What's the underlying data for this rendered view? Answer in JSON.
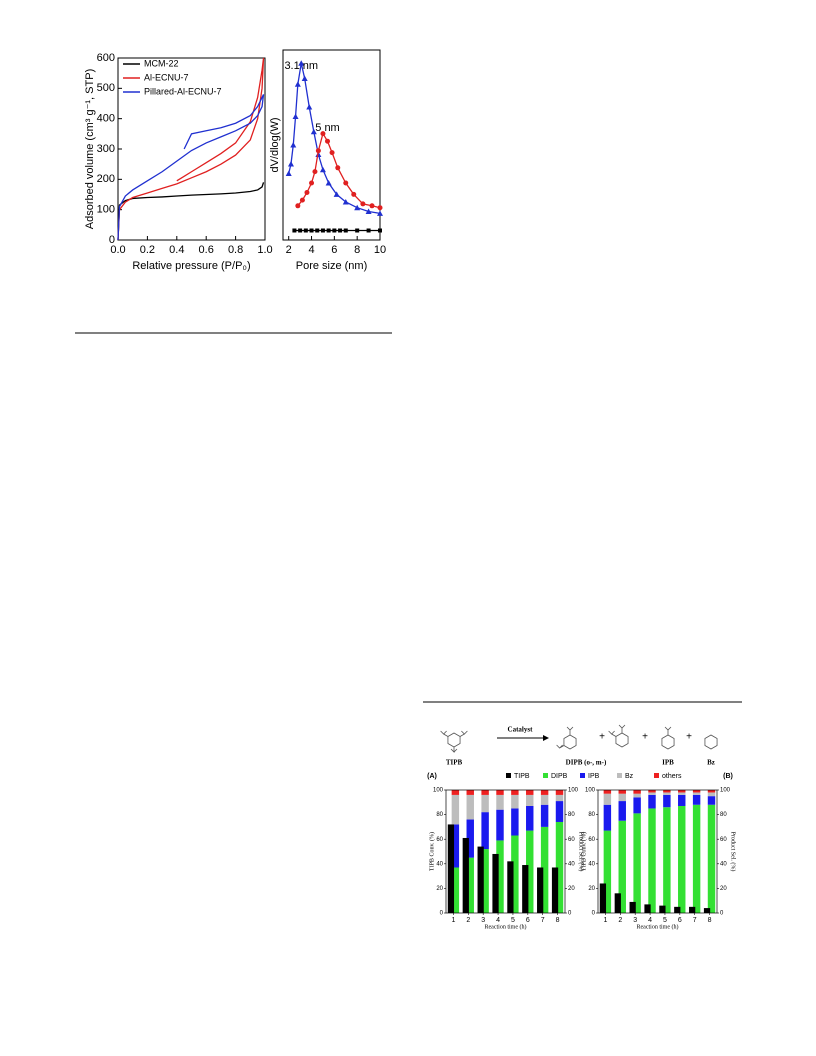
{
  "chart_data": [
    {
      "type": "line",
      "xlabel": "Relative pressure (P/P₀)",
      "ylabel": "Adsorbed volume (cm³ g⁻¹, STP)",
      "xlim": [
        0,
        1
      ],
      "xticks": [
        {
          "value": 0,
          "label": "0.0"
        },
        0.2,
        0.4,
        0.6,
        0.8,
        {
          "value": 1,
          "label": "1.0"
        }
      ],
      "ylim": [
        0,
        600
      ],
      "yticks": [
        0,
        100,
        200,
        300,
        400,
        500,
        600
      ],
      "legend": "top-left",
      "series": [
        {
          "name": "MCM-22",
          "color": "#000000",
          "x": [
            0,
            0.01,
            0.05,
            0.1,
            0.2,
            0.3,
            0.4,
            0.5,
            0.6,
            0.7,
            0.8,
            0.9,
            0.95,
            0.98,
            0.99
          ],
          "values": [
            0,
            115,
            130,
            137,
            140,
            142,
            145,
            148,
            150,
            152,
            155,
            160,
            165,
            175,
            190
          ]
        },
        {
          "name": "Al-ECNU-7",
          "color": "#e02020",
          "x": [
            0,
            0.01,
            0.05,
            0.1,
            0.2,
            0.3,
            0.4,
            0.5,
            0.6,
            0.7,
            0.8,
            0.9,
            0.95,
            0.98,
            0.99,
            0.98,
            0.95,
            0.9,
            0.8,
            0.7,
            0.6,
            0.5,
            0.45,
            0.4
          ],
          "values": [
            0,
            100,
            125,
            140,
            155,
            170,
            185,
            205,
            225,
            250,
            280,
            330,
            400,
            500,
            600,
            560,
            470,
            390,
            320,
            285,
            255,
            225,
            210,
            195
          ]
        },
        {
          "name": "Pillared-Al-ECNU-7",
          "color": "#2030d0",
          "x": [
            0,
            0.01,
            0.05,
            0.1,
            0.2,
            0.3,
            0.4,
            0.5,
            0.6,
            0.7,
            0.8,
            0.9,
            0.95,
            0.98,
            0.99,
            0.98,
            0.95,
            0.9,
            0.8,
            0.7,
            0.6,
            0.5,
            0.45
          ],
          "values": [
            0,
            110,
            145,
            165,
            195,
            225,
            260,
            295,
            320,
            340,
            360,
            385,
            410,
            440,
            480,
            470,
            440,
            410,
            385,
            370,
            360,
            350,
            300
          ]
        }
      ]
    },
    {
      "type": "line",
      "xlabel": "Pore size (nm)",
      "ylabel": "dV/dlog(W)",
      "xlim": [
        1.5,
        10
      ],
      "xticks": [
        2,
        4,
        6,
        8,
        10
      ],
      "ylim": [
        0,
        100
      ],
      "annotations": [
        "3.1 nm",
        "5 nm"
      ],
      "series": [
        {
          "color": "#2030d0",
          "marker": "triangle",
          "x": [
            2,
            2.2,
            2.4,
            2.6,
            2.8,
            3.1,
            3.4,
            3.8,
            4.2,
            4.6,
            5,
            5.5,
            6.2,
            7,
            8,
            9,
            10
          ],
          "values": [
            35,
            40,
            50,
            65,
            82,
            93,
            85,
            70,
            57,
            45,
            37,
            30,
            24,
            20,
            17,
            15,
            14
          ]
        },
        {
          "color": "#e02020",
          "marker": "circle",
          "x": [
            2.8,
            3.2,
            3.6,
            4,
            4.3,
            4.6,
            5,
            5.4,
            5.8,
            6.3,
            7,
            7.7,
            8.5,
            9.3,
            10
          ],
          "values": [
            18,
            21,
            25,
            30,
            36,
            47,
            56,
            52,
            46,
            38,
            30,
            24,
            19,
            18,
            17
          ]
        },
        {
          "color": "#000000",
          "marker": "square",
          "x": [
            2.5,
            3,
            3.5,
            4,
            4.5,
            5,
            5.5,
            6,
            6.5,
            7,
            8,
            9,
            10
          ],
          "values": [
            5,
            5,
            5,
            5,
            5,
            5,
            5,
            5,
            5,
            5,
            5,
            5,
            5
          ]
        }
      ]
    },
    {
      "type": "bar",
      "xlabel": "Reaction time (h)",
      "ylabel": "TIPB Conv. (%)",
      "y2label": "Product Sel. (%)",
      "ylim": [
        0,
        100
      ],
      "yticks": [
        0,
        20,
        40,
        60,
        80,
        100
      ],
      "y2lim": [
        0,
        100
      ],
      "y2ticks": [
        0,
        20,
        40,
        60,
        80,
        100
      ],
      "series": [
        {
          "name": "TIPB",
          "color": "#000000"
        },
        {
          "name": "DIPB",
          "color": "#33e033",
          "axis": "y2"
        },
        {
          "name": "IPB",
          "color": "#1a1aee",
          "axis": "y2"
        },
        {
          "name": "Bz",
          "color": "#bdbdbd",
          "axis": "y2"
        },
        {
          "name": "others",
          "color": "#ee2020",
          "axis": "y2"
        }
      ],
      "panels": [
        {
          "label": "(A)",
          "categories": [
            "1",
            "2",
            "3",
            "4",
            "5",
            "6",
            "7",
            "8"
          ],
          "values": [
            [
              72,
              61,
              54,
              48,
              42,
              39,
              37,
              37
            ],
            [
              37,
              45,
              52,
              59,
              63,
              67,
              70,
              74
            ],
            [
              35,
              31,
              30,
              25,
              22,
              20,
              18,
              17
            ],
            [
              24,
              20,
              14,
              12,
              11,
              9,
              8,
              5
            ],
            [
              4,
              4,
              4,
              4,
              4,
              4,
              4,
              4
            ]
          ]
        },
        {
          "label": "(B)",
          "categories": [
            "1",
            "2",
            "3",
            "4",
            "5",
            "6",
            "7",
            "8"
          ],
          "values": [
            [
              24,
              16,
              9,
              7,
              6,
              5,
              5,
              4
            ],
            [
              67,
              75,
              81,
              85,
              86,
              87,
              88,
              88
            ],
            [
              21,
              16,
              13,
              11,
              10,
              9,
              8,
              7
            ],
            [
              9,
              6,
              3,
              2,
              2,
              2,
              2,
              3
            ],
            [
              3,
              3,
              3,
              2,
              2,
              2,
              2,
              2
            ]
          ]
        }
      ]
    }
  ],
  "scheme": {
    "reactant": "TIPB",
    "catalyst": "Catalyst",
    "products": [
      "DIPB (o-, m-)",
      "IPB",
      "Bz"
    ],
    "plus": "+"
  }
}
